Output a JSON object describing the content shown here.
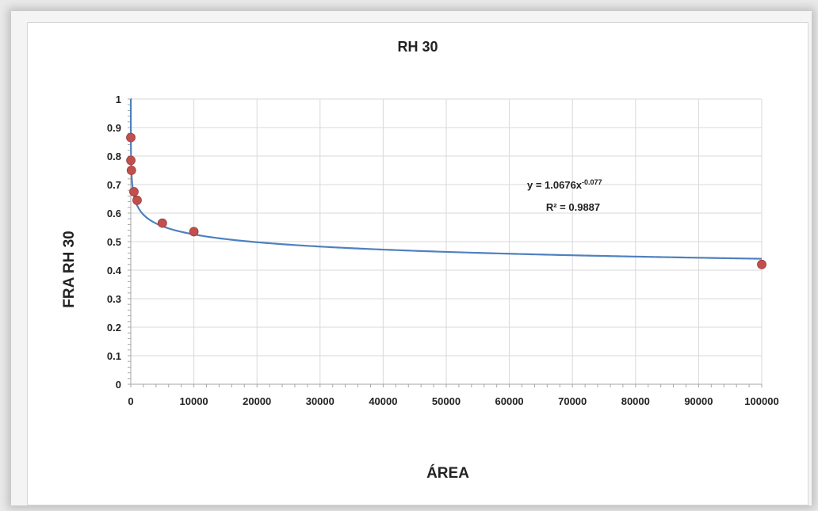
{
  "chart_data": {
    "type": "scatter",
    "title": "RH 30",
    "xlabel": "ÁREA",
    "ylabel": "FRA RH 30",
    "xlim": [
      0,
      100000
    ],
    "ylim": [
      0,
      1
    ],
    "x_ticks": [
      "0",
      "10000",
      "20000",
      "30000",
      "40000",
      "50000",
      "60000",
      "70000",
      "80000",
      "90000",
      "100000"
    ],
    "y_ticks": [
      "0",
      "0.1",
      "0.2",
      "0.3",
      "0.4",
      "0.5",
      "0.6",
      "0.7",
      "0.8",
      "0.9",
      "1"
    ],
    "grid": true,
    "series": [
      {
        "points": [
          {
            "x": 1,
            "y": 0.865
          },
          {
            "x": 10,
            "y": 0.785
          },
          {
            "x": 100,
            "y": 0.75
          },
          {
            "x": 500,
            "y": 0.675
          },
          {
            "x": 1000,
            "y": 0.645
          },
          {
            "x": 5000,
            "y": 0.565
          },
          {
            "x": 10000,
            "y": 0.535
          },
          {
            "x": 100000,
            "y": 0.42
          }
        ],
        "marker_color": "#c0504d"
      }
    ],
    "trendline": {
      "type": "power",
      "coefficient": 1.0676,
      "exponent": -0.077,
      "color": "#4f81bd",
      "equation_text": "y = 1.0676x",
      "equation_exponent": "-0.077",
      "r2_text": "R² = 0.9887"
    }
  }
}
